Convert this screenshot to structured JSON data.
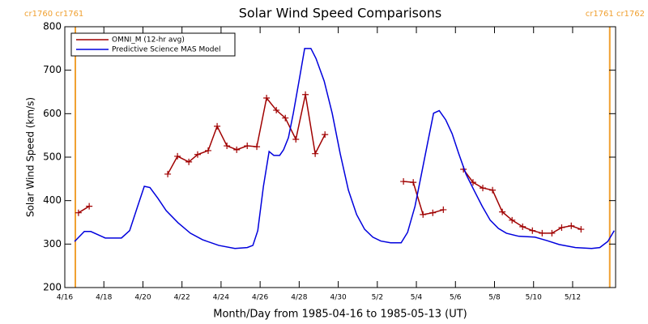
{
  "chart_data": {
    "type": "line",
    "title": "Solar Wind Speed Comparisons",
    "xlabel": "Month/Day from 1985-04-16 to 1985-05-13 (UT)",
    "ylabel": "Solar Wind Speed (km/s)",
    "xlim": [
      0,
      28.2
    ],
    "ylim": [
      200,
      800
    ],
    "xticks": [
      {
        "value": 0,
        "label": "4/16"
      },
      {
        "value": 2,
        "label": "4/18"
      },
      {
        "value": 4,
        "label": "4/20"
      },
      {
        "value": 6,
        "label": "4/22"
      },
      {
        "value": 8,
        "label": "4/24"
      },
      {
        "value": 10,
        "label": "4/26"
      },
      {
        "value": 12,
        "label": "4/28"
      },
      {
        "value": 14,
        "label": "4/30"
      },
      {
        "value": 16,
        "label": "5/2"
      },
      {
        "value": 18,
        "label": "5/4"
      },
      {
        "value": 20,
        "label": "5/6"
      },
      {
        "value": 22,
        "label": "5/8"
      },
      {
        "value": 24,
        "label": "5/10"
      },
      {
        "value": 26,
        "label": "5/12"
      }
    ],
    "yticks": [
      200,
      300,
      400,
      500,
      600,
      700,
      800
    ],
    "legend": "upper left",
    "annotations": [
      {
        "text": "cr1760 cr1761",
        "x": 0.54,
        "color": "#f0a030"
      },
      {
        "text": "cr1761 cr1762",
        "x": 27.9,
        "color": "#f0a030"
      }
    ],
    "series": [
      {
        "name": "OMNI_M (12-hr avg)",
        "color": "#a00000",
        "markers": "+",
        "x": [
          0.7,
          1.25,
          3.0,
          5.27,
          5.77,
          6.35,
          6.8,
          7.34,
          7.8,
          8.3,
          8.8,
          9.34,
          9.83,
          10.33,
          10.83,
          11.29,
          11.83,
          12.32,
          12.82,
          13.32,
          15.0,
          17.34,
          17.84,
          18.34,
          18.84,
          19.38,
          19.9,
          20.41,
          20.9,
          21.4,
          21.9,
          22.4,
          22.9,
          23.44,
          23.94,
          24.44,
          24.94,
          25.44,
          25.93,
          26.43
        ],
        "values": [
          372,
          387,
          null,
          461,
          502,
          489,
          506,
          515,
          571,
          526,
          517,
          526,
          524,
          636,
          608,
          590,
          541,
          644,
          508,
          552,
          null,
          444,
          442,
          368,
          372,
          379,
          null,
          472,
          442,
          429,
          424,
          374,
          355,
          340,
          331,
          325,
          325,
          338,
          342,
          334
        ]
      },
      {
        "name": "Predictive Science MAS Model",
        "color": "#0000dd",
        "x": [
          0.5,
          1.0,
          1.33,
          2.07,
          2.9,
          3.32,
          3.73,
          4.07,
          4.36,
          4.77,
          5.19,
          5.8,
          6.43,
          7.05,
          7.88,
          8.71,
          9.34,
          9.63,
          9.88,
          10.17,
          10.46,
          10.7,
          11.0,
          11.2,
          11.45,
          11.7,
          12.03,
          12.28,
          12.6,
          12.86,
          13.28,
          13.69,
          14.1,
          14.52,
          14.94,
          15.35,
          15.77,
          16.18,
          16.68,
          17.22,
          17.55,
          17.93,
          18.26,
          18.59,
          18.88,
          19.17,
          19.5,
          19.83,
          20.17,
          20.54,
          20.95,
          21.37,
          21.78,
          22.2,
          22.61,
          23.24,
          24.07,
          24.69,
          25.31,
          26.14,
          26.97,
          27.39,
          27.8,
          28.13
        ],
        "values": [
          306,
          329,
          329,
          314,
          314,
          331,
          387,
          433,
          430,
          405,
          377,
          349,
          325,
          310,
          297,
          290,
          292,
          297,
          331,
          433,
          513,
          504,
          504,
          517,
          545,
          601,
          685,
          750,
          750,
          727,
          675,
          601,
          508,
          424,
          368,
          334,
          316,
          307,
          303,
          303,
          327,
          387,
          461,
          536,
          601,
          607,
          586,
          554,
          508,
          461,
          424,
          387,
          355,
          336,
          325,
          318,
          316,
          308,
          299,
          292,
          290,
          292,
          306,
          331
        ]
      }
    ]
  }
}
